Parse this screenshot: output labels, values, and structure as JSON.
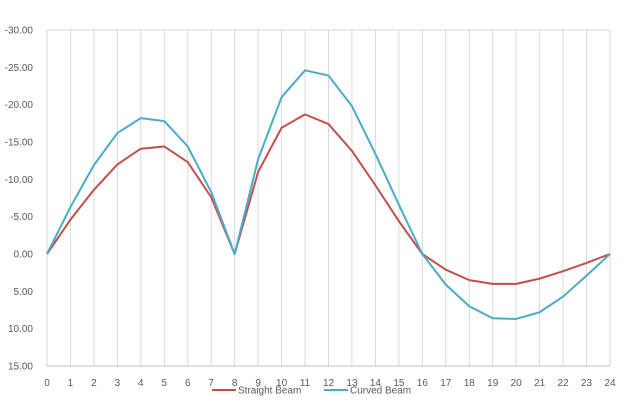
{
  "chart_data": {
    "type": "line",
    "title": "",
    "xlabel": "",
    "ylabel": "",
    "x": [
      0,
      1,
      2,
      3,
      4,
      5,
      6,
      7,
      8,
      9,
      10,
      11,
      12,
      13,
      14,
      15,
      16,
      17,
      18,
      19,
      20,
      21,
      22,
      23,
      24
    ],
    "x_ticks": [
      "0",
      "1",
      "2",
      "3",
      "4",
      "5",
      "6",
      "7",
      "8",
      "9",
      "10",
      "11",
      "12",
      "13",
      "14",
      "15",
      "16",
      "17",
      "18",
      "19",
      "20",
      "21",
      "22",
      "23",
      "24"
    ],
    "y_ticks": [
      "-30.00",
      "-25.00",
      "-20.00",
      "-15.00",
      "-10.00",
      "-5.00",
      "0.00",
      "5.00",
      "10.00",
      "15.00"
    ],
    "ylim": [
      -30,
      15
    ],
    "y_reversed": true,
    "grid": "vertical",
    "legend_position": "bottom",
    "series": [
      {
        "name": "Straight Beam",
        "color": "#c0504d",
        "values": [
          0,
          -4.6,
          -8.6,
          -12.0,
          -14.1,
          -14.4,
          -12.3,
          -7.6,
          0,
          -11.0,
          -16.9,
          -18.7,
          -17.4,
          -13.8,
          -9.2,
          -4.4,
          0,
          2.1,
          3.5,
          4.0,
          4.0,
          3.3,
          2.3,
          1.2,
          0
        ]
      },
      {
        "name": "Curved Beam",
        "color": "#4bacc6",
        "values": [
          0,
          -6.3,
          -11.9,
          -16.2,
          -18.2,
          -17.8,
          -14.4,
          -8.3,
          0,
          -12.7,
          -21.0,
          -24.6,
          -23.9,
          -19.8,
          -13.4,
          -6.6,
          0,
          4.1,
          7.0,
          8.6,
          8.7,
          7.8,
          5.7,
          2.9,
          0
        ]
      }
    ]
  }
}
